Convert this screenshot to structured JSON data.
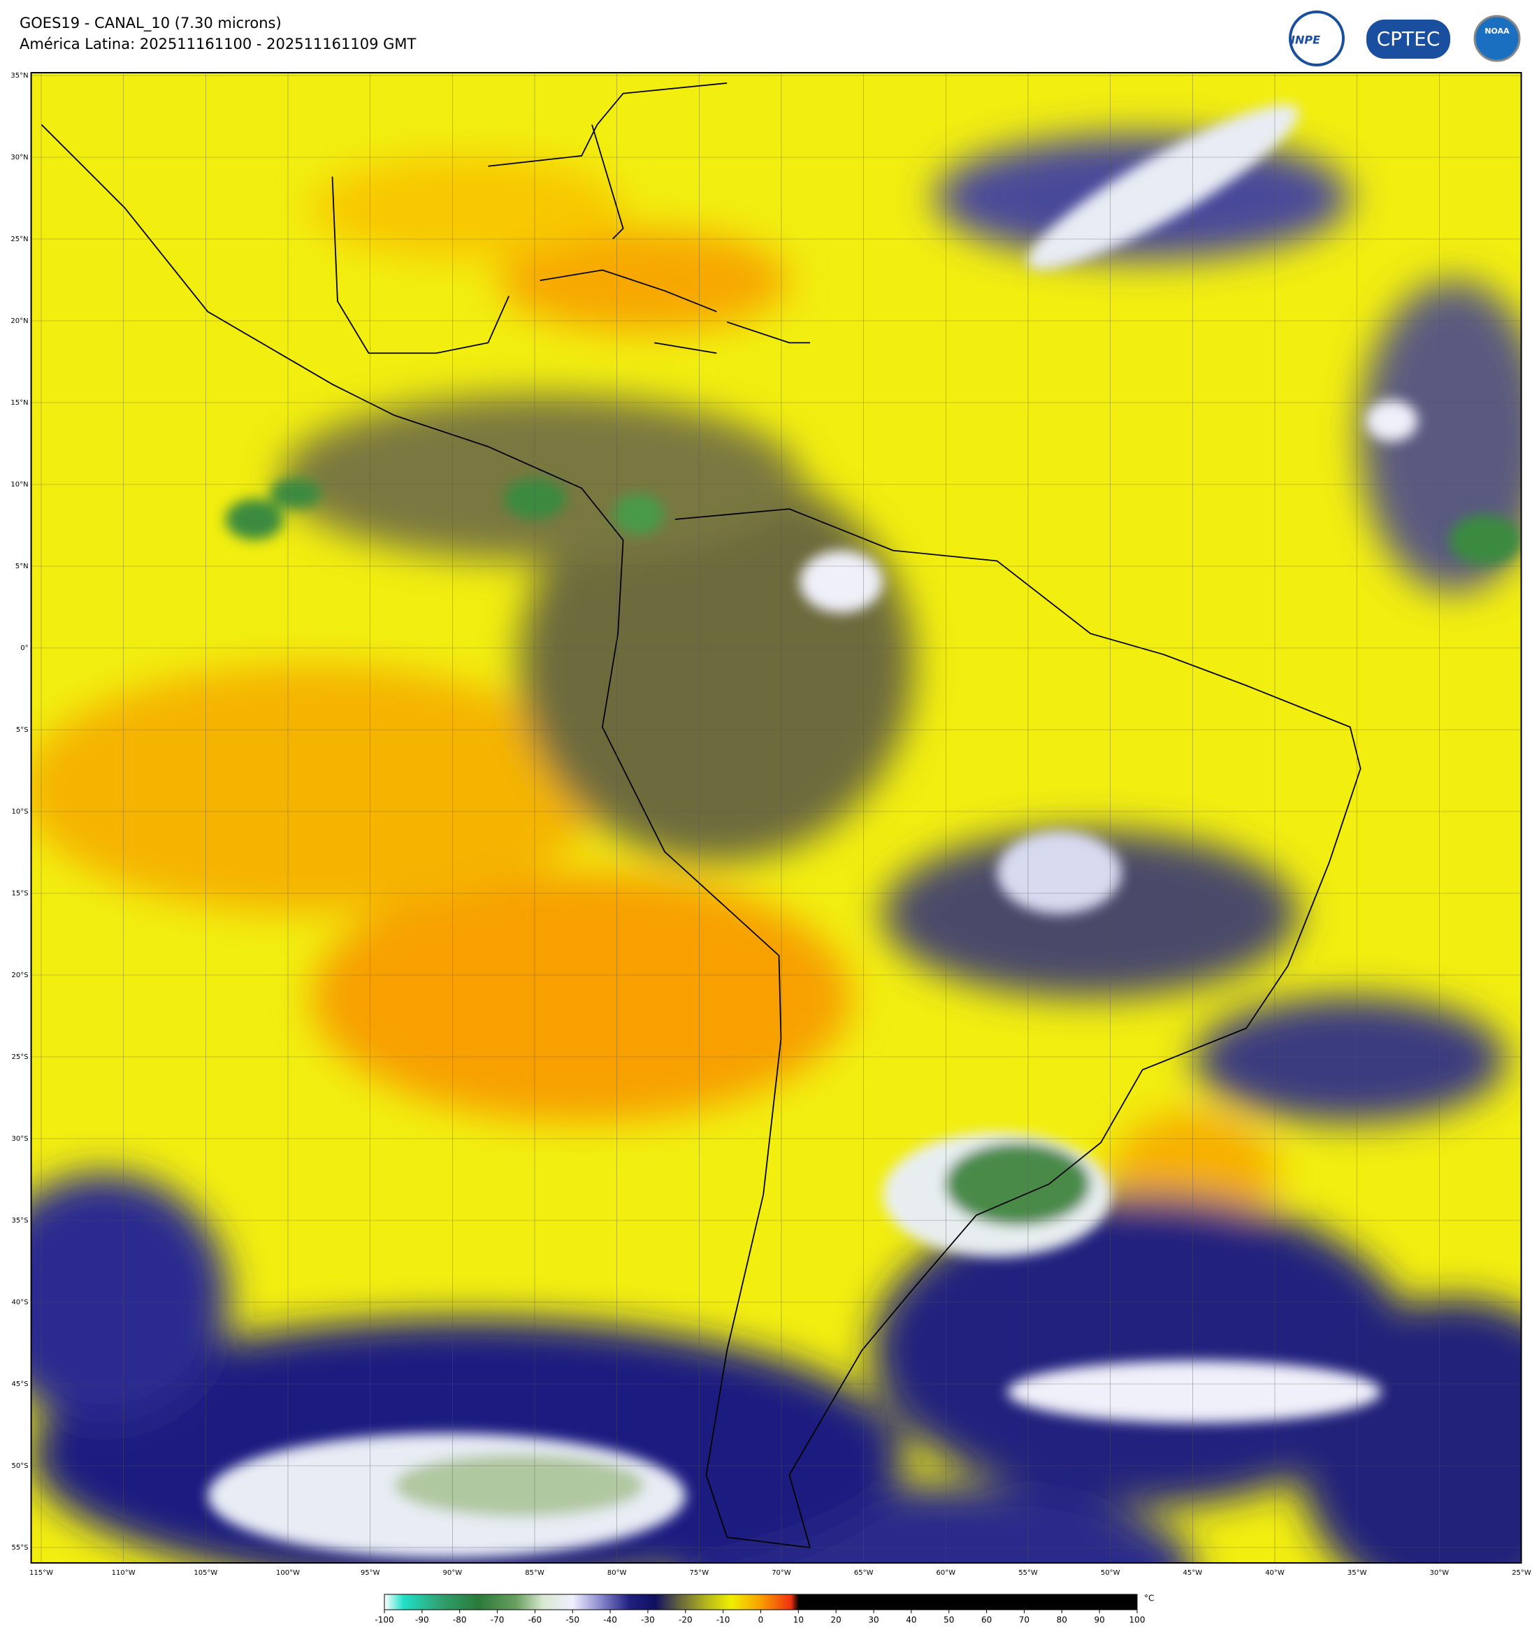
{
  "header": {
    "title": "GOES19 - CANAL_10 (7.30 microns)",
    "subtitle": "América Latina: 202511161100 - 202511161109 GMT"
  },
  "logos": [
    "INPE",
    "CPTEC",
    "NOAA"
  ],
  "map": {
    "lat_labels": [
      "35°N",
      "30°N",
      "25°N",
      "20°N",
      "15°N",
      "10°N",
      "5°N",
      "0°",
      "5°S",
      "10°S",
      "15°S",
      "20°S",
      "25°S",
      "30°S",
      "35°S",
      "40°S",
      "45°S",
      "50°S",
      "55°S"
    ],
    "lon_labels": [
      "115°W",
      "110°W",
      "105°W",
      "100°W",
      "95°W",
      "90°W",
      "85°W",
      "80°W",
      "75°W",
      "70°W",
      "65°W",
      "60°W",
      "55°W",
      "50°W",
      "45°W",
      "40°W",
      "35°W",
      "30°W",
      "25°W"
    ]
  },
  "colorbar": {
    "unit": "°C",
    "ticks": [
      -100,
      -90,
      -80,
      -70,
      -60,
      -50,
      -40,
      -30,
      -20,
      -10,
      0,
      10,
      20,
      30,
      40,
      50,
      60,
      70,
      80,
      90,
      100
    ],
    "stops": [
      {
        "value": -100,
        "color": "#ffffff"
      },
      {
        "value": -95,
        "color": "#20e0c8"
      },
      {
        "value": -85,
        "color": "#30a070"
      },
      {
        "value": -75,
        "color": "#2a7a3a"
      },
      {
        "value": -65,
        "color": "#6aa060"
      },
      {
        "value": -58,
        "color": "#d8e8d0"
      },
      {
        "value": -50,
        "color": "#f0f0ff"
      },
      {
        "value": -42,
        "color": "#8080c8"
      },
      {
        "value": -35,
        "color": "#202080"
      },
      {
        "value": -28,
        "color": "#101060"
      },
      {
        "value": -22,
        "color": "#606040"
      },
      {
        "value": -15,
        "color": "#b0b020"
      },
      {
        "value": -8,
        "color": "#f0f000"
      },
      {
        "value": 0,
        "color": "#f8a000"
      },
      {
        "value": 8,
        "color": "#f03010"
      },
      {
        "value": 10,
        "color": "#000000"
      },
      {
        "value": 100,
        "color": "#000000"
      }
    ]
  }
}
